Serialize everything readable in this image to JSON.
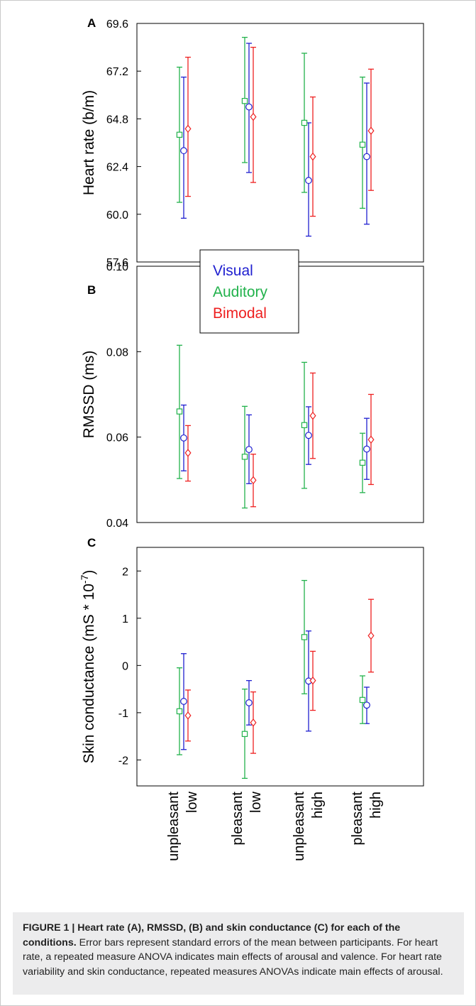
{
  "chart_data": [
    {
      "panel": "A",
      "type": "scatter",
      "ylabel": "Heart rate (b/m)",
      "yticks": [
        "57.6",
        "60.0",
        "62.4",
        "64.8",
        "67.2",
        "69.6"
      ],
      "ylim": [
        57.6,
        69.6
      ],
      "series": [
        {
          "name": "Visual",
          "color": "#1f1fd0",
          "marker": "circle",
          "values": [
            63.2,
            65.4,
            61.7,
            62.9
          ],
          "err_low": [
            59.8,
            62.1,
            58.9,
            59.5
          ],
          "err_high": [
            66.9,
            68.6,
            64.6,
            66.6
          ]
        },
        {
          "name": "Auditory",
          "color": "#22b24c",
          "marker": "square",
          "values": [
            64.0,
            65.7,
            64.6,
            63.5
          ],
          "err_low": [
            60.6,
            62.6,
            61.1,
            60.3
          ],
          "err_high": [
            67.4,
            68.9,
            68.1,
            66.9
          ]
        },
        {
          "name": "Bimodal",
          "color": "#ee2020",
          "marker": "diamond",
          "values": [
            64.3,
            64.9,
            62.9,
            64.2
          ],
          "err_low": [
            60.9,
            61.6,
            59.9,
            61.2
          ],
          "err_high": [
            67.9,
            68.4,
            65.9,
            67.3
          ]
        }
      ]
    },
    {
      "panel": "B",
      "type": "scatter",
      "ylabel": "RMSSD (ms)",
      "yticks": [
        "0.04",
        "0.06",
        "0.08",
        "0.10"
      ],
      "ylim": [
        0.04,
        0.1
      ],
      "series": [
        {
          "name": "Visual",
          "color": "#1f1fd0",
          "marker": "circle",
          "values": [
            0.0598,
            0.0571,
            0.0604,
            0.0572
          ],
          "err_low": [
            0.0521,
            0.0491,
            0.0536,
            0.0501
          ],
          "err_high": [
            0.0675,
            0.0652,
            0.0671,
            0.0644
          ]
        },
        {
          "name": "Auditory",
          "color": "#22b24c",
          "marker": "square",
          "values": [
            0.066,
            0.0554,
            0.0628,
            0.054
          ],
          "err_low": [
            0.0503,
            0.0434,
            0.048,
            0.047
          ],
          "err_high": [
            0.0815,
            0.0672,
            0.0775,
            0.0609
          ]
        },
        {
          "name": "Bimodal",
          "color": "#ee2020",
          "marker": "diamond",
          "values": [
            0.0563,
            0.0499,
            0.065,
            0.0594
          ],
          "err_low": [
            0.0497,
            0.0437,
            0.055,
            0.0489
          ],
          "err_high": [
            0.0627,
            0.056,
            0.075,
            0.07
          ]
        }
      ]
    },
    {
      "panel": "C",
      "type": "scatter",
      "ylabel_main": "Skin conductance  (mS * 10",
      "ylabel_sup": "-7",
      "ylabel_end": ")",
      "yticks": [
        "-2",
        "-1",
        "0",
        "1",
        "2"
      ],
      "ylim": [
        -2.55,
        2.5
      ],
      "categories": [
        "unpleasant\nlow",
        "pleasant\nlow",
        "unpleasant\nhigh",
        "pleasant\nhigh"
      ],
      "series": [
        {
          "name": "Visual",
          "color": "#1f1fd0",
          "marker": "circle",
          "values": [
            -0.76,
            -0.79,
            -0.33,
            -0.84
          ],
          "err_low": [
            -1.78,
            -1.26,
            -1.39,
            -1.23
          ],
          "err_high": [
            0.25,
            -0.32,
            0.73,
            -0.46
          ]
        },
        {
          "name": "Auditory",
          "color": "#22b24c",
          "marker": "square",
          "values": [
            -0.97,
            -1.45,
            0.6,
            -0.73
          ],
          "err_low": [
            -1.89,
            -2.39,
            -0.6,
            -1.23
          ],
          "err_high": [
            -0.05,
            -0.5,
            1.8,
            -0.22
          ]
        },
        {
          "name": "Bimodal",
          "color": "#ee2020",
          "marker": "diamond",
          "values": [
            -1.06,
            -1.21,
            -0.32,
            0.63
          ],
          "err_low": [
            -1.6,
            -1.86,
            -0.95,
            -0.14
          ],
          "err_high": [
            -0.52,
            -0.56,
            0.3,
            1.4
          ]
        }
      ]
    }
  ],
  "legend": {
    "position": "between panels A and B",
    "entries": [
      "Visual",
      "Auditory",
      "Bimodal"
    ]
  },
  "categories": [
    {
      "line1": "unpleasant",
      "line2": "low"
    },
    {
      "line1": "pleasant",
      "line2": "low"
    },
    {
      "line1": "unpleasant",
      "line2": "high"
    },
    {
      "line1": "pleasant",
      "line2": "high"
    }
  ],
  "caption": {
    "title": "FIGURE 1 | Heart rate (A), RMSSD, (B) and skin conductance (C) for each of the conditions.",
    "body": " Error bars represent standard errors of the mean between participants. For heart rate, a repeated measure ANOVA indicates main effects of arousal and valence. For heart rate variability and skin conductance, repeated measures ANOVAs indicate main effects of arousal."
  }
}
